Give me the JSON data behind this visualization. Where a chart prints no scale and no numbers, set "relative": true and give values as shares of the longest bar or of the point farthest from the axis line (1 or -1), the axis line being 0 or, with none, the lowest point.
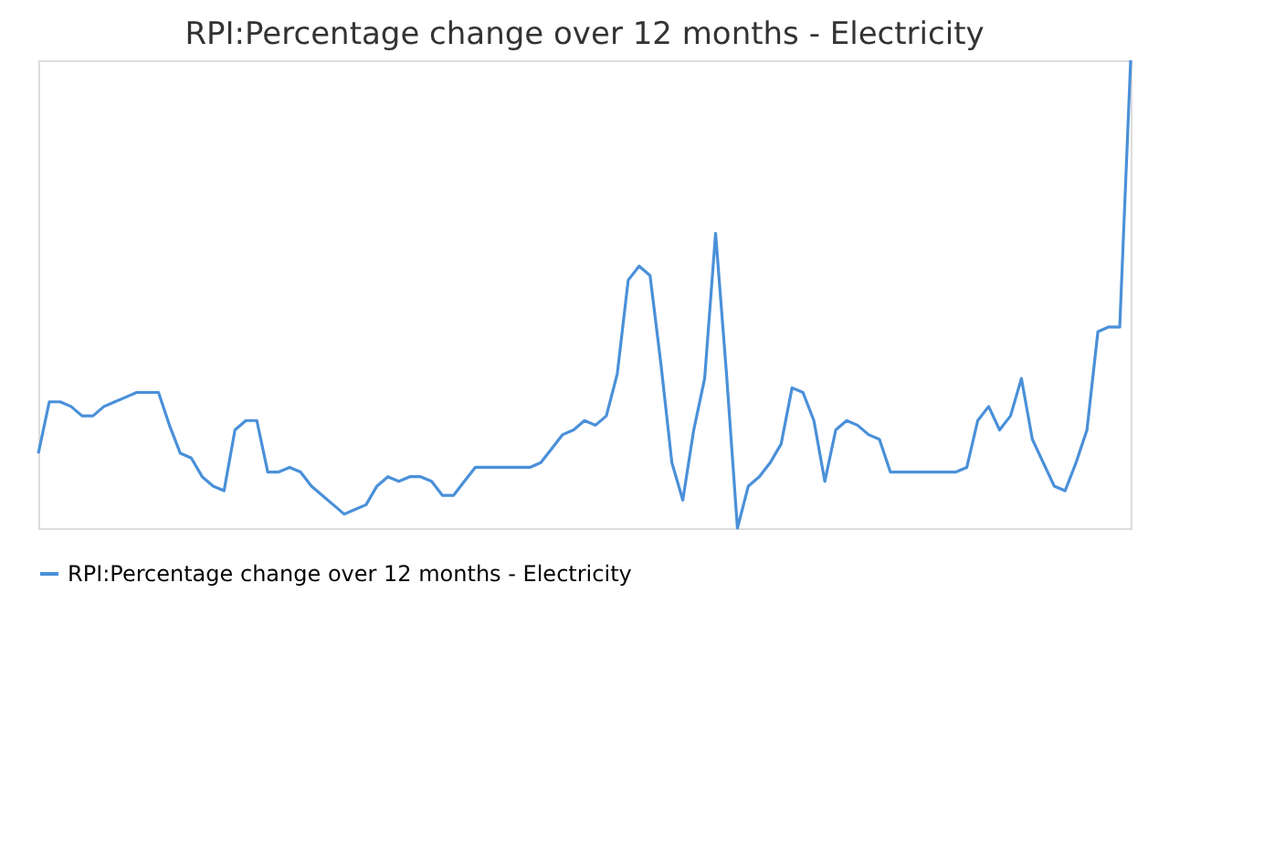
{
  "chart_data": {
    "type": "line",
    "title": "RPI:Percentage change over 12 months - Electricity",
    "relative": true,
    "legend": "bottom",
    "grid": false,
    "categories": [
      null,
      null,
      null,
      null,
      null,
      null,
      null,
      null,
      null,
      null,
      null,
      null,
      null,
      null,
      null,
      null,
      null,
      null,
      null,
      null,
      null,
      null,
      null,
      null,
      null,
      null,
      null,
      null,
      null,
      null,
      null,
      null,
      null,
      null,
      null,
      null,
      null,
      null,
      null,
      null,
      null,
      null,
      null,
      null,
      null,
      null,
      null,
      null,
      null,
      null,
      null,
      null,
      null,
      null,
      null,
      null,
      null,
      null,
      null,
      null,
      null,
      null,
      null,
      null,
      null,
      null,
      null,
      null,
      null,
      null,
      null,
      null,
      null,
      null,
      null,
      null,
      null,
      null,
      null,
      null,
      null,
      null,
      null,
      null,
      null,
      null,
      null,
      null,
      null,
      null,
      null,
      null,
      null,
      null,
      null,
      null,
      null,
      null,
      null,
      null,
      null
    ],
    "series": [
      {
        "name": "RPI:Percentage change over 12 months - Electricity",
        "color": "#4a90d9",
        "values": [
          0.16,
          0.27,
          0.27,
          0.26,
          0.24,
          0.24,
          0.26,
          0.27,
          0.28,
          0.29,
          0.29,
          0.29,
          0.22,
          0.16,
          0.15,
          0.11,
          0.09,
          0.08,
          0.21,
          0.23,
          0.23,
          0.12,
          0.12,
          0.13,
          0.12,
          0.09,
          0.07,
          0.05,
          0.03,
          0.04,
          0.05,
          0.09,
          0.11,
          0.1,
          0.11,
          0.11,
          0.1,
          0.07,
          0.07,
          0.1,
          0.13,
          0.13,
          0.13,
          0.13,
          0.13,
          0.13,
          0.14,
          0.17,
          0.2,
          0.21,
          0.23,
          0.22,
          0.24,
          0.33,
          0.53,
          0.56,
          0.54,
          0.35,
          0.14,
          0.06,
          0.21,
          0.32,
          0.63,
          0.33,
          0,
          0.09,
          0.11,
          0.14,
          0.18,
          0.3,
          0.29,
          0.23,
          0.1,
          0.21,
          0.23,
          0.22,
          0.2,
          0.19,
          0.12,
          0.12,
          0.12,
          0.12,
          0.12,
          0.12,
          0.12,
          0.13,
          0.23,
          0.26,
          0.21,
          0.24,
          0.32,
          0.19,
          0.14,
          0.09,
          0.08,
          0.14,
          0.21,
          0.42,
          0.43,
          0.43,
          1
        ]
      }
    ]
  }
}
